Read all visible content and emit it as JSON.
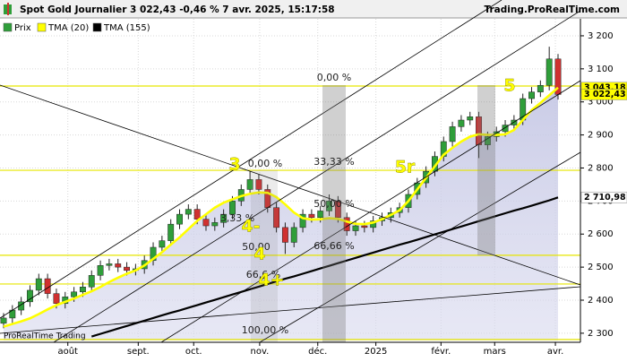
{
  "chart_data": {
    "type": "candlestick",
    "title": "Spot  Gold Journalier 3 022,43 -0,46 % 7 avr. 2025, 15:17:58",
    "source": "Trading.ProRealTime.com",
    "watermark": "ProRealTime Trading",
    "legend": [
      "Prix",
      "TMA (20)",
      "TMA (155)"
    ],
    "open": [
      2330,
      2346,
      2370,
      2395,
      2430,
      2465,
      2420,
      2390,
      2410,
      2425,
      2440,
      2475,
      2505,
      2510,
      2500,
      2490,
      2495,
      2520,
      2560,
      2580,
      2630,
      2660,
      2675,
      2645,
      2625,
      2635,
      2660,
      2700,
      2735,
      2765,
      2735,
      2680,
      2620,
      2575,
      2620,
      2660,
      2650,
      2670,
      2700,
      2650,
      2610,
      2625,
      2620,
      2640,
      2650,
      2665,
      2680,
      2720,
      2755,
      2790,
      2835,
      2880,
      2925,
      2945,
      2955,
      2870,
      2895,
      2910,
      2930,
      2945,
      3010,
      3030,
      3050,
      3130
    ],
    "high": [
      2361,
      2385,
      2410,
      2445,
      2480,
      2480,
      2435,
      2425,
      2440,
      2455,
      2490,
      2520,
      2525,
      2525,
      2515,
      2510,
      2535,
      2575,
      2595,
      2645,
      2675,
      2690,
      2690,
      2660,
      2650,
      2675,
      2715,
      2750,
      2790,
      2780,
      2750,
      2695,
      2635,
      2635,
      2675,
      2675,
      2685,
      2720,
      2715,
      2665,
      2640,
      2640,
      2655,
      2665,
      2680,
      2695,
      2735,
      2770,
      2805,
      2850,
      2895,
      2940,
      2960,
      2970,
      2970,
      2910,
      2925,
      2945,
      2960,
      3025,
      3045,
      3065,
      3167,
      3145
    ],
    "low": [
      2315,
      2331,
      2355,
      2380,
      2415,
      2405,
      2375,
      2375,
      2395,
      2410,
      2425,
      2460,
      2490,
      2485,
      2475,
      2475,
      2480,
      2505,
      2545,
      2565,
      2615,
      2645,
      2630,
      2610,
      2610,
      2620,
      2645,
      2685,
      2720,
      2720,
      2665,
      2605,
      2540,
      2560,
      2605,
      2635,
      2635,
      2655,
      2635,
      2595,
      2595,
      2605,
      2605,
      2625,
      2635,
      2650,
      2665,
      2705,
      2740,
      2775,
      2820,
      2865,
      2910,
      2930,
      2830,
      2855,
      2880,
      2895,
      2915,
      2930,
      2995,
      3015,
      3035,
      3007
    ],
    "close": [
      2346,
      2370,
      2395,
      2430,
      2465,
      2420,
      2390,
      2410,
      2425,
      2440,
      2475,
      2505,
      2510,
      2500,
      2490,
      2495,
      2520,
      2560,
      2580,
      2630,
      2660,
      2675,
      2645,
      2625,
      2635,
      2660,
      2700,
      2735,
      2765,
      2735,
      2680,
      2620,
      2575,
      2620,
      2660,
      2650,
      2670,
      2700,
      2650,
      2610,
      2625,
      2620,
      2640,
      2650,
      2665,
      2680,
      2720,
      2755,
      2790,
      2835,
      2880,
      2925,
      2945,
      2955,
      2870,
      2895,
      2910,
      2930,
      2945,
      3010,
      3030,
      3050,
      3130,
      3022.43
    ],
    "up_color": "#2f9e3a",
    "down_color": "#d03030",
    "series": [
      {
        "name": "TMA (20)",
        "color": "#ffff00",
        "values": [
          2320,
          2328,
          2336,
          2345,
          2358,
          2372,
          2385,
          2395,
          2405,
          2416,
          2427,
          2440,
          2455,
          2468,
          2480,
          2490,
          2505,
          2525,
          2545,
          2568,
          2590,
          2615,
          2640,
          2660,
          2680,
          2695,
          2705,
          2715,
          2722,
          2726,
          2725,
          2712,
          2690,
          2665,
          2648,
          2644,
          2645,
          2648,
          2646,
          2638,
          2631,
          2630,
          2635,
          2645,
          2658,
          2672,
          2700,
          2735,
          2770,
          2805,
          2840,
          2861,
          2880,
          2895,
          2902,
          2900,
          2900,
          2902,
          2915,
          2945,
          2975,
          2997,
          3020,
          3043.18
        ]
      },
      {
        "name": "TMA (155)",
        "color": "#000000",
        "values": [
          null,
          null,
          null,
          null,
          null,
          null,
          null,
          null,
          null,
          null,
          2290,
          2298,
          2306,
          2314,
          2322,
          2330,
          2338,
          2346,
          2354,
          2362,
          2369,
          2377,
          2385,
          2393,
          2401,
          2409,
          2417,
          2425,
          2433,
          2441,
          2449,
          2457,
          2465,
          2472,
          2480,
          2488,
          2496,
          2504,
          2512,
          2520,
          2528,
          2536,
          2544,
          2552,
          2560,
          2568,
          2575,
          2583,
          2591,
          2599,
          2607,
          2615,
          2623,
          2631,
          2639,
          2647,
          2655,
          2663,
          2671,
          2678,
          2686,
          2694,
          2702,
          2710.98
        ]
      }
    ],
    "ylim": [
      2278,
      3227
    ],
    "yticks": [
      {
        "value": 2300,
        "label": "2 300"
      },
      {
        "value": 2400,
        "label": "2 400"
      },
      {
        "value": 2500,
        "label": "2 500"
      },
      {
        "value": 2600,
        "label": "2 600"
      },
      {
        "value": 2700,
        "label": "2 700"
      },
      {
        "value": 2800,
        "label": "2 800"
      },
      {
        "value": 2900,
        "label": "2 900"
      },
      {
        "value": 3000,
        "label": "3 000"
      },
      {
        "value": 3100,
        "label": "3 100"
      },
      {
        "value": 3200,
        "label": "3 200"
      }
    ],
    "xticks": [
      {
        "value": 7.3,
        "label": "août"
      },
      {
        "value": 15.3,
        "label": "sept."
      },
      {
        "value": 21.6,
        "label": "oct."
      },
      {
        "value": 29.1,
        "label": "nov."
      },
      {
        "value": 35.7,
        "label": "déc."
      },
      {
        "value": 42.3,
        "label": "2025"
      },
      {
        "value": 49.7,
        "label": "févr."
      },
      {
        "value": 55.8,
        "label": "mars"
      },
      {
        "value": 62.7,
        "label": "avr."
      }
    ],
    "hlines": [
      3048,
      2793,
      2536,
      2449,
      2281
    ],
    "price_tags": [
      {
        "value": 3043.18,
        "label": "3 043,18",
        "color": "#ffff00"
      },
      {
        "value": 3022.43,
        "label": "3 022,43",
        "color": "#ffff00"
      },
      {
        "value": 2710.98,
        "label": "2 710,98",
        "color": "#ffffff"
      }
    ],
    "fib_labels": [
      "0,00 %",
      "33,33 %",
      "50,00 %",
      "66,66 %",
      "100,00 %",
      "0,00 %",
      "3,33 %",
      "50,00",
      "66,6 %"
    ],
    "wave_labels": [
      "3",
      "4-",
      "4",
      "4+",
      "5r",
      "5"
    ]
  }
}
